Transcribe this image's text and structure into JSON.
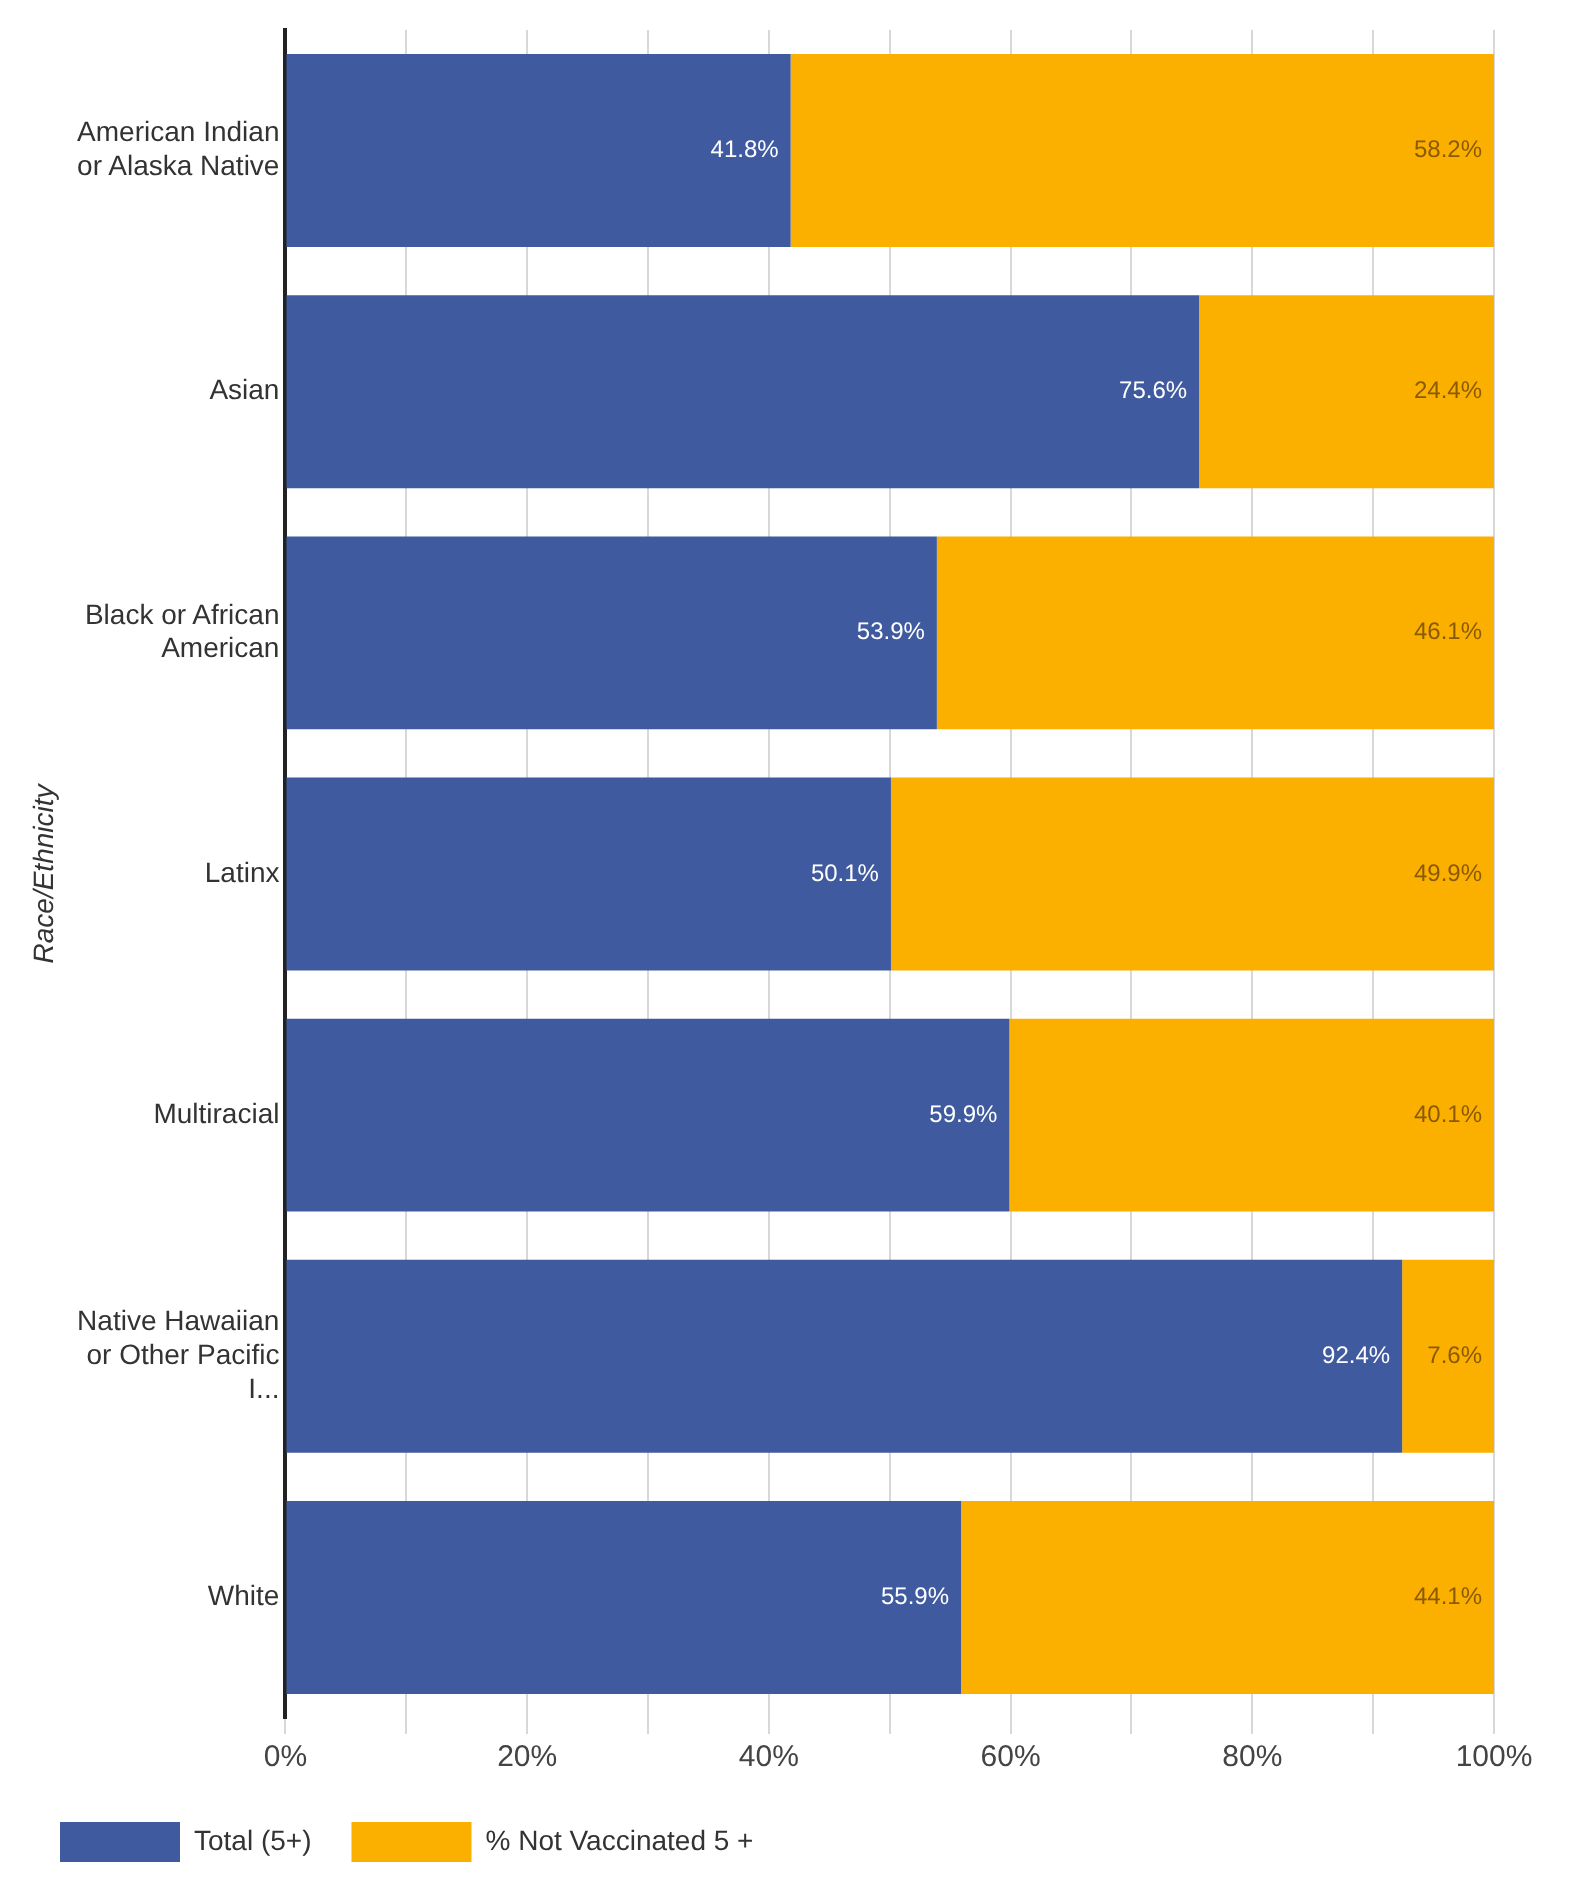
{
  "chart_data": {
    "type": "bar",
    "orientation": "horizontal",
    "stacked": true,
    "ylabel": "Race/Ethnicity",
    "categories": [
      "American Indian or Alaska Native",
      "Asian",
      "Black or African American",
      "Latinx",
      "Multiracial",
      "Native Hawaiian or Other Pacific I...",
      "White"
    ],
    "series": [
      {
        "name": "Total (5+)",
        "color": "#3f5a9e",
        "values": [
          41.8,
          75.6,
          53.9,
          50.1,
          59.9,
          92.4,
          55.9
        ],
        "value_labels": [
          "41.8%",
          "75.6%",
          "53.9%",
          "50.1%",
          "59.9%",
          "92.4%",
          "55.9%"
        ]
      },
      {
        "name": "% Not Vaccinated 5 +",
        "color": "#fbb000",
        "values": [
          58.2,
          24.4,
          46.1,
          49.9,
          40.1,
          7.6,
          44.1
        ],
        "value_labels": [
          "58.2%",
          "24.4%",
          "46.1%",
          "49.9%",
          "40.1%",
          "7.6%",
          "44.1%"
        ]
      }
    ],
    "xlim": [
      0,
      100
    ],
    "xticks": [
      {
        "value": 0,
        "label": "0%"
      },
      {
        "value": 10,
        "label": null
      },
      {
        "value": 20,
        "label": "20%"
      },
      {
        "value": 30,
        "label": null
      },
      {
        "value": 40,
        "label": "40%"
      },
      {
        "value": 50,
        "label": null
      },
      {
        "value": 60,
        "label": "60%"
      },
      {
        "value": 70,
        "label": null
      },
      {
        "value": 80,
        "label": "80%"
      },
      {
        "value": 90,
        "label": null
      },
      {
        "value": 100,
        "label": "100%"
      }
    ],
    "grid": "x",
    "legend": "bottom"
  }
}
